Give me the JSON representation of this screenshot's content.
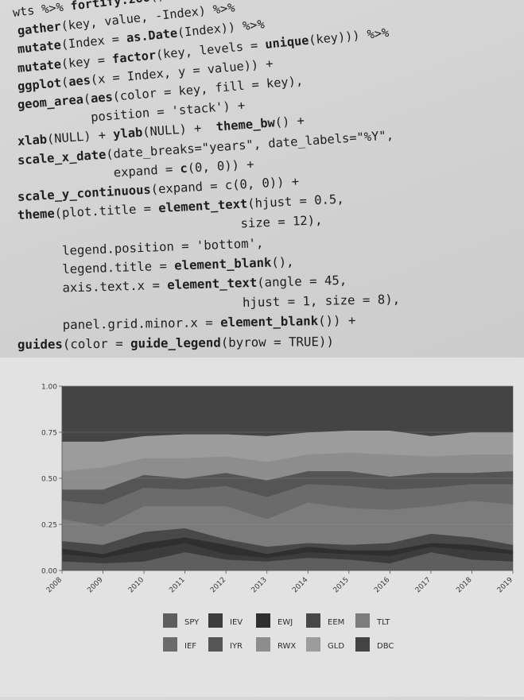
{
  "code_lines": [
    [
      {
        "t": "wts %>% "
      },
      {
        "t": "fortify.zoo",
        "b": true
      },
      {
        "t": "() %>%"
      }
    ],
    [
      {
        "t": "gather",
        "b": true
      },
      {
        "t": "(key, value, -Index) %>%"
      }
    ],
    [
      {
        "t": "mutate",
        "b": true
      },
      {
        "t": "(Index = "
      },
      {
        "t": "as.Date",
        "b": true
      },
      {
        "t": "(Index)) %>%"
      }
    ],
    [
      {
        "t": "mutate",
        "b": true
      },
      {
        "t": "(key = "
      },
      {
        "t": "factor",
        "b": true
      },
      {
        "t": "(key, levels = "
      },
      {
        "t": "unique",
        "b": true
      },
      {
        "t": "(key))) %>%"
      }
    ],
    [
      {
        "t": "ggplot",
        "b": true
      },
      {
        "t": "("
      },
      {
        "t": "aes",
        "b": true
      },
      {
        "t": "(x = Index, y = value)) +"
      }
    ],
    [
      {
        "t": "geom_area",
        "b": true
      },
      {
        "t": "("
      },
      {
        "t": "aes",
        "b": true
      },
      {
        "t": "(color = key, fill = key),"
      }
    ],
    [
      {
        "t": "          position = 'stack') +"
      }
    ],
    [
      {
        "t": "xlab",
        "b": true
      },
      {
        "t": "(NULL) + "
      },
      {
        "t": "ylab",
        "b": true
      },
      {
        "t": "(NULL) +  "
      },
      {
        "t": "theme_bw",
        "b": true
      },
      {
        "t": "() +"
      }
    ],
    [
      {
        "t": "scale_x_date",
        "b": true
      },
      {
        "t": "(date_breaks=\"years\", date_labels=\"%Y\","
      }
    ],
    [
      {
        "t": "             expand = "
      },
      {
        "t": "c",
        "b": true
      },
      {
        "t": "(0, 0)) +"
      }
    ],
    [
      {
        "t": "scale_y_continuous",
        "b": true
      },
      {
        "t": "(expand = c(0, 0)) +"
      }
    ],
    [
      {
        "t": "theme",
        "b": true
      },
      {
        "t": "(plot.title = "
      },
      {
        "t": "element_text",
        "b": true
      },
      {
        "t": "(hjust = 0.5,"
      }
    ],
    [
      {
        "t": "                              size = 12),"
      }
    ],
    [
      {
        "t": "      legend.position = 'bottom',"
      }
    ],
    [
      {
        "t": "      legend.title = "
      },
      {
        "t": "element_blank",
        "b": true
      },
      {
        "t": "(),"
      }
    ],
    [
      {
        "t": "      axis.text.x = "
      },
      {
        "t": "element_text",
        "b": true
      },
      {
        "t": "(angle = 45,"
      }
    ],
    [
      {
        "t": "                              hjust = 1, size = 8),"
      }
    ],
    [
      {
        "t": "      panel.grid.minor.x = "
      },
      {
        "t": "element_blank",
        "b": true
      },
      {
        "t": "()) +"
      }
    ],
    [
      {
        "t": "guides",
        "b": true
      },
      {
        "t": "(color = "
      },
      {
        "t": "guide_legend",
        "b": true
      },
      {
        "t": "(byrow = TRUE))"
      }
    ]
  ],
  "chart_data": {
    "type": "area",
    "stacked": true,
    "x": [
      "2008",
      "2009",
      "2010",
      "2011",
      "2012",
      "2013",
      "2014",
      "2015",
      "2016",
      "2017",
      "2018",
      "2019"
    ],
    "y_ticks": [
      "0.00",
      "0.25",
      "0.50",
      "0.75",
      "1.00"
    ],
    "ylim": [
      0,
      1
    ],
    "legend_position": "bottom",
    "series": [
      {
        "name": "SPY",
        "color": "#5e5e5e",
        "values": [
          0.05,
          0.04,
          0.05,
          0.1,
          0.06,
          0.05,
          0.07,
          0.06,
          0.04,
          0.1,
          0.06,
          0.05
        ]
      },
      {
        "name": "IEV",
        "color": "#3c3c3c",
        "values": [
          0.04,
          0.03,
          0.06,
          0.05,
          0.03,
          0.02,
          0.03,
          0.03,
          0.04,
          0.03,
          0.05,
          0.04
        ]
      },
      {
        "name": "EWJ",
        "color": "#2f2f2f",
        "values": [
          0.03,
          0.02,
          0.04,
          0.03,
          0.05,
          0.02,
          0.03,
          0.02,
          0.03,
          0.02,
          0.03,
          0.02
        ]
      },
      {
        "name": "EEM",
        "color": "#484848",
        "values": [
          0.04,
          0.05,
          0.06,
          0.05,
          0.03,
          0.04,
          0.02,
          0.03,
          0.04,
          0.05,
          0.04,
          0.03
        ]
      },
      {
        "name": "TLT",
        "color": "#7c7c7c",
        "values": [
          0.12,
          0.1,
          0.14,
          0.12,
          0.18,
          0.15,
          0.22,
          0.2,
          0.18,
          0.15,
          0.2,
          0.22
        ]
      },
      {
        "name": "IEF",
        "color": "#6b6b6b",
        "values": [
          0.1,
          0.12,
          0.1,
          0.09,
          0.11,
          0.12,
          0.1,
          0.12,
          0.11,
          0.1,
          0.09,
          0.11
        ]
      },
      {
        "name": "IYR",
        "color": "#555555",
        "values": [
          0.06,
          0.08,
          0.07,
          0.06,
          0.07,
          0.09,
          0.07,
          0.08,
          0.07,
          0.08,
          0.06,
          0.07
        ]
      },
      {
        "name": "RWX",
        "color": "#8d8d8d",
        "values": [
          0.1,
          0.12,
          0.09,
          0.11,
          0.09,
          0.1,
          0.09,
          0.1,
          0.12,
          0.09,
          0.1,
          0.09
        ]
      },
      {
        "name": "GLD",
        "color": "#9c9c9c",
        "values": [
          0.16,
          0.14,
          0.12,
          0.13,
          0.12,
          0.14,
          0.12,
          0.12,
          0.13,
          0.11,
          0.12,
          0.12
        ]
      },
      {
        "name": "DBC",
        "color": "#444444",
        "values": [
          0.3,
          0.3,
          0.27,
          0.26,
          0.26,
          0.27,
          0.25,
          0.24,
          0.24,
          0.27,
          0.25,
          0.25
        ]
      }
    ]
  }
}
